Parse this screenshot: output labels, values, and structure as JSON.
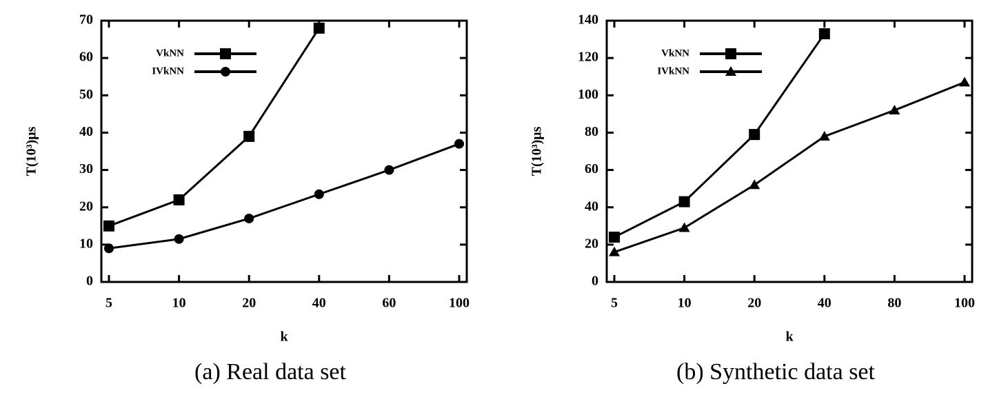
{
  "chart_data": [
    {
      "type": "line",
      "caption": "(a) Real data set",
      "xlabel": "k",
      "ylabel": "T(10³)μs",
      "categories": [
        "5",
        "10",
        "20",
        "40",
        "60",
        "100"
      ],
      "ylim": [
        0,
        70
      ],
      "yticks": [
        0,
        10,
        20,
        30,
        40,
        50,
        60,
        70
      ],
      "series": [
        {
          "name": "VkNN",
          "color": "#000000",
          "marker": "square",
          "values": [
            15,
            22,
            39,
            68,
            null,
            null
          ]
        },
        {
          "name": "IVkNN",
          "color": "#000000",
          "marker": "circle",
          "values": [
            9,
            11.5,
            17,
            23.5,
            30,
            37
          ]
        }
      ]
    },
    {
      "type": "line",
      "caption": "(b) Synthetic data set",
      "xlabel": "k",
      "ylabel": "T(10³)μs",
      "categories": [
        "5",
        "10",
        "20",
        "40",
        "80",
        "100"
      ],
      "ylim": [
        0,
        140
      ],
      "yticks": [
        0,
        20,
        40,
        60,
        80,
        100,
        120,
        140
      ],
      "series": [
        {
          "name": "VkNN",
          "color": "#000000",
          "marker": "square",
          "values": [
            24,
            43,
            79,
            133,
            null,
            null
          ]
        },
        {
          "name": "IVkNN",
          "color": "#000000",
          "marker": "triangle",
          "values": [
            16,
            29,
            52,
            78,
            92,
            107
          ]
        }
      ]
    }
  ]
}
